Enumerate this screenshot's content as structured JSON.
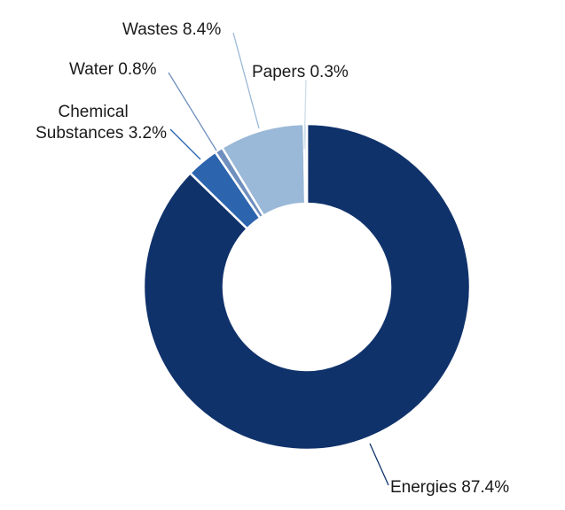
{
  "chart_data": {
    "type": "pie",
    "donut": true,
    "legend": "none",
    "slices": [
      {
        "label": "Energies",
        "display": "Energies 87.4%",
        "value": 87.4,
        "color": "#10326b"
      },
      {
        "label": "Chemical Substances",
        "display_lines": [
          "Chemical",
          "Substances 3.2%"
        ],
        "value": 3.2,
        "color": "#2c64ae"
      },
      {
        "label": "Water",
        "display": "Water 0.8%",
        "value": 0.8,
        "color": "#6f8fbe"
      },
      {
        "label": "Wastes",
        "display": "Wastes 8.4%",
        "value": 8.4,
        "color": "#9ab8d7"
      },
      {
        "label": "Papers",
        "display": "Papers 0.3%",
        "value": 0.3,
        "color": "#cdddea"
      }
    ]
  }
}
